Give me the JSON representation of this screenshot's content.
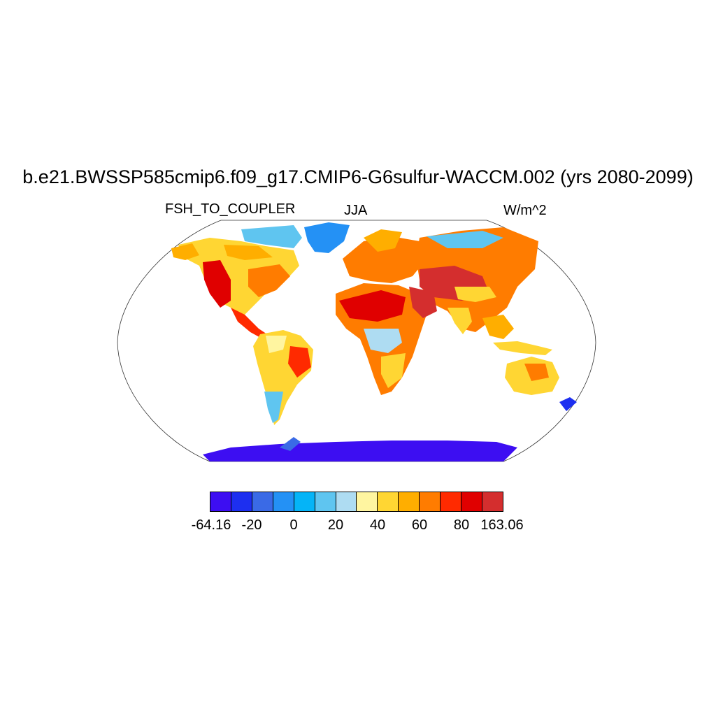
{
  "title": "b.e21.BWSSP585cmip6.f09_g17.CMIP6-G6sulfur-WACCM.002 (yrs 2080-2099)",
  "variable": "FSH_TO_COUPLER",
  "season": "JJA",
  "units": "W/m^2",
  "colorbar": {
    "colors": [
      "#3d0ef2",
      "#1d2ff0",
      "#3a6ae6",
      "#2491f5",
      "#05b4f7",
      "#5fc5f0",
      "#aedcf2",
      "#fff5a0",
      "#ffd633",
      "#ffae00",
      "#ff7c00",
      "#ff2a00",
      "#e00000",
      "#d42e2e"
    ],
    "labels": [
      "-64.16",
      "-20",
      "0",
      "20",
      "40",
      "60",
      "80",
      "163.06"
    ]
  },
  "map": {
    "projection": "Robinson",
    "field": "FSH_TO_COUPLER",
    "ocean_color": "#ffffff"
  }
}
